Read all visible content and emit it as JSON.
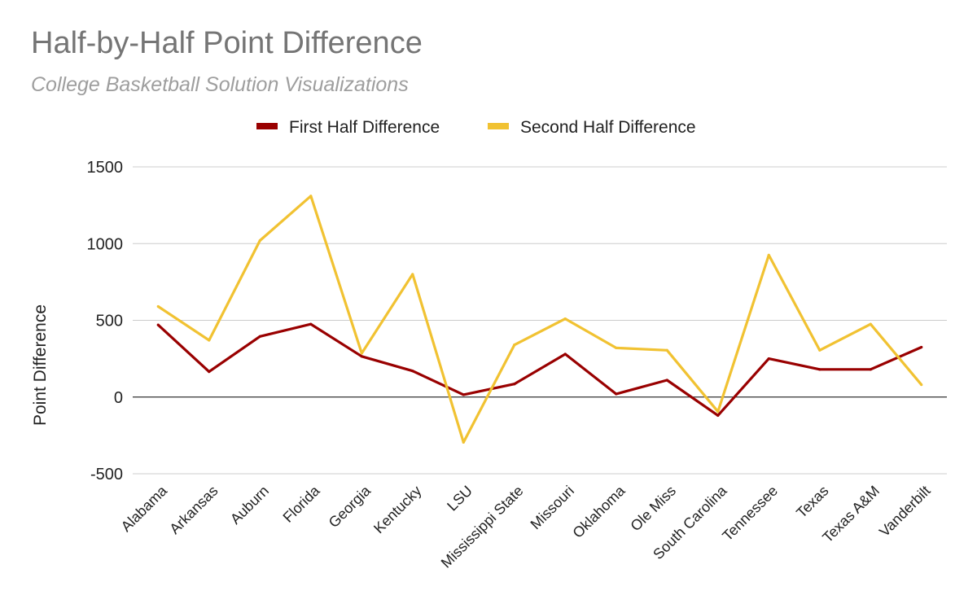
{
  "title": "Half-by-Half Point Difference",
  "subtitle": "College Basketball Solution Visualizations",
  "chart_data": {
    "type": "line",
    "title": "Half-by-Half Point Difference",
    "subtitle": "College Basketball Solution Visualizations",
    "xlabel": "",
    "ylabel": "Point Difference",
    "ylim": [
      -500,
      1500
    ],
    "yticks": [
      1500,
      1000,
      500,
      0,
      -500
    ],
    "grid": true,
    "legend_position": "top",
    "categories": [
      "Alabama",
      "Arkansas",
      "Auburn",
      "Florida",
      "Georgia",
      "Kentucky",
      "LSU",
      "Mississippi State",
      "Missouri",
      "Oklahoma",
      "Ole Miss",
      "South Carolina",
      "Tennessee",
      "Texas",
      "Texas A&M",
      "Vanderbilt"
    ],
    "series": [
      {
        "name": "First Half Difference",
        "color": "#990000",
        "values": [
          470,
          165,
          395,
          475,
          265,
          170,
          15,
          85,
          280,
          20,
          110,
          -120,
          250,
          180,
          180,
          325
        ]
      },
      {
        "name": "Second Half Difference",
        "color": "#f1c232",
        "values": [
          590,
          370,
          1020,
          1310,
          285,
          800,
          -295,
          340,
          510,
          320,
          305,
          -95,
          925,
          305,
          475,
          80
        ]
      }
    ]
  }
}
